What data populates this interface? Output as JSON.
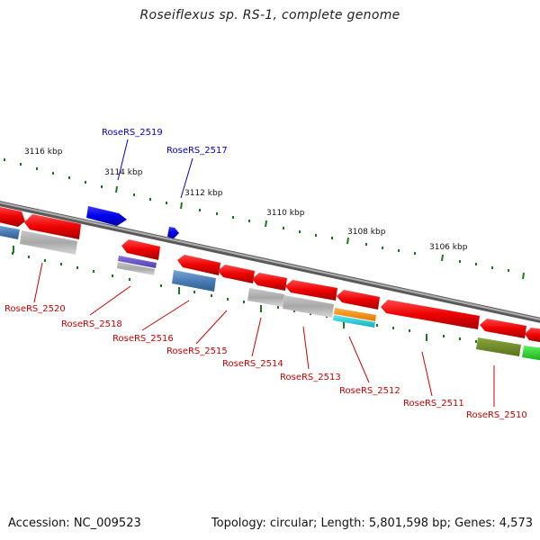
{
  "title": "Roseiflexus sp. RS-1, complete genome",
  "footer": {
    "accession": "Accession: NC_009523",
    "summary": "Topology: circular; Length: 5,801,598 bp; Genes: 4,573"
  },
  "ticks": [
    {
      "label": "3116 kbp"
    },
    {
      "label": "3114 kbp"
    },
    {
      "label": "3112 kbp"
    },
    {
      "label": "3110 kbp"
    },
    {
      "label": "3108 kbp"
    },
    {
      "label": "3106 kbp"
    }
  ],
  "labels": [
    {
      "text": "RoseRS_2519",
      "strand": "forward"
    },
    {
      "text": "RoseRS_2517",
      "strand": "forward"
    },
    {
      "text": "RoseRS_2520",
      "strand": "reverse"
    },
    {
      "text": "RoseRS_2518",
      "strand": "reverse"
    },
    {
      "text": "RoseRS_2516",
      "strand": "reverse"
    },
    {
      "text": "RoseRS_2515",
      "strand": "reverse"
    },
    {
      "text": "RoseRS_2514",
      "strand": "reverse"
    },
    {
      "text": "RoseRS_2513",
      "strand": "reverse"
    },
    {
      "text": "RoseRS_2512",
      "strand": "reverse"
    },
    {
      "text": "RoseRS_2511",
      "strand": "reverse"
    },
    {
      "text": "RoseRS_2510",
      "strand": "reverse"
    }
  ],
  "colors": {
    "backbone": "#808080",
    "forward_cds": "#0000ee",
    "reverse_cds": "#ee0000",
    "tick_marks": "#1a7a1a",
    "forward_label": "#0000cc",
    "reverse_label": "#cc0000"
  }
}
